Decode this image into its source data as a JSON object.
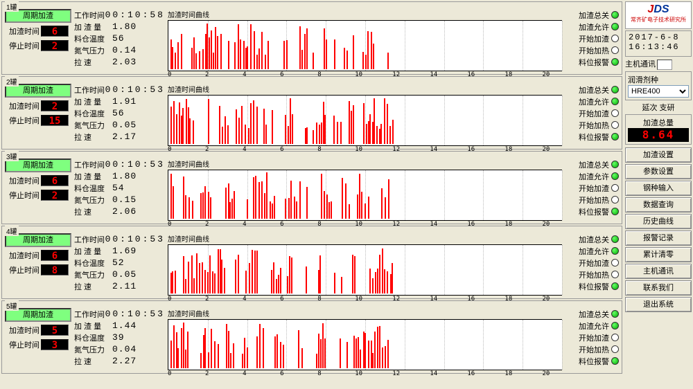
{
  "right": {
    "brand_j": "J",
    "brand_ds": "DS",
    "org": "常齐矿电子技术研究所",
    "date": "2017-6-8",
    "time": "16:13:46",
    "host_label": "主机通讯",
    "seed_group_label": "润滑剂种",
    "dropdown_value": "HRE400",
    "uniform_label": "延次 支研",
    "total_label": "加渣总量",
    "total_value": "8.64",
    "buttons": [
      "加渣设置",
      "参数设置",
      "钢种输入",
      "数据查询",
      "历史曲线",
      "报警记录",
      "累计清零",
      "主机通讯",
      "联系我们",
      "退出系统"
    ]
  },
  "status_labels": [
    "加渣总关",
    "加渣允许",
    "开始加渣",
    "开始加热",
    "料位报警"
  ],
  "chart": {
    "title": "加渣时间曲线",
    "xticks": [
      "0",
      "2",
      "4",
      "6",
      "8",
      "10",
      "12",
      "14",
      "16",
      "18",
      "20"
    ],
    "data_end_pct": 57,
    "bar_color": "#ff0000",
    "bg": "#ffffff"
  },
  "tanks": [
    {
      "title": "1罐",
      "cycle_btn": "周期加渣",
      "add_label": "加渣时间",
      "add_val": "6",
      "stop_label": "停止时间",
      "stop_val": "2",
      "stats": [
        [
          "工作时间",
          "00:10:58"
        ],
        [
          "加 渣 量",
          "1.80"
        ],
        [
          "料仓温度",
          "56"
        ],
        [
          "氮气压力",
          "0.14"
        ],
        [
          "拉    速",
          "2.03"
        ]
      ],
      "status": [
        true,
        true,
        false,
        false,
        true
      ]
    },
    {
      "title": "2罐",
      "cycle_btn": "周期加渣",
      "add_label": "加渣时间",
      "add_val": "2",
      "stop_label": "停止时间",
      "stop_val": "15",
      "stats": [
        [
          "工作时间",
          "00:10:53"
        ],
        [
          "加 渣 量",
          "1.91"
        ],
        [
          "料仓温度",
          "56"
        ],
        [
          "氮气压力",
          "0.05"
        ],
        [
          "拉    速",
          "2.17"
        ]
      ],
      "status": [
        true,
        true,
        false,
        false,
        true
      ]
    },
    {
      "title": "3罐",
      "cycle_btn": "周期加渣",
      "add_label": "加渣时间",
      "add_val": "6",
      "stop_label": "停止时间",
      "stop_val": "2",
      "stats": [
        [
          "工作时间",
          "00:10:53"
        ],
        [
          "加 渣 量",
          "1.80"
        ],
        [
          "料仓温度",
          "54"
        ],
        [
          "氮气压力",
          "0.15"
        ],
        [
          "拉    速",
          "2.06"
        ]
      ],
      "status": [
        true,
        true,
        false,
        false,
        true
      ]
    },
    {
      "title": "4罐",
      "cycle_btn": "周期加渣",
      "add_label": "加渣时间",
      "add_val": "6",
      "stop_label": "停止时间",
      "stop_val": "8",
      "stats": [
        [
          "工作时间",
          "00:10:53"
        ],
        [
          "加 渣 量",
          "1.69"
        ],
        [
          "料仓温度",
          "52"
        ],
        [
          "氮气压力",
          "0.05"
        ],
        [
          "拉    速",
          "2.11"
        ]
      ],
      "status": [
        true,
        true,
        false,
        false,
        true
      ]
    },
    {
      "title": "5罐",
      "cycle_btn": "周期加渣",
      "add_label": "加渣时间",
      "add_val": "5",
      "stop_label": "停止时间",
      "stop_val": "3",
      "stats": [
        [
          "工作时间",
          "00:10:53"
        ],
        [
          "加 渣 量",
          "1.44"
        ],
        [
          "料仓温度",
          "39"
        ],
        [
          "氮气压力",
          "0.04"
        ],
        [
          "拉    速",
          "2.27"
        ]
      ],
      "status": [
        true,
        true,
        false,
        false,
        true
      ]
    }
  ]
}
